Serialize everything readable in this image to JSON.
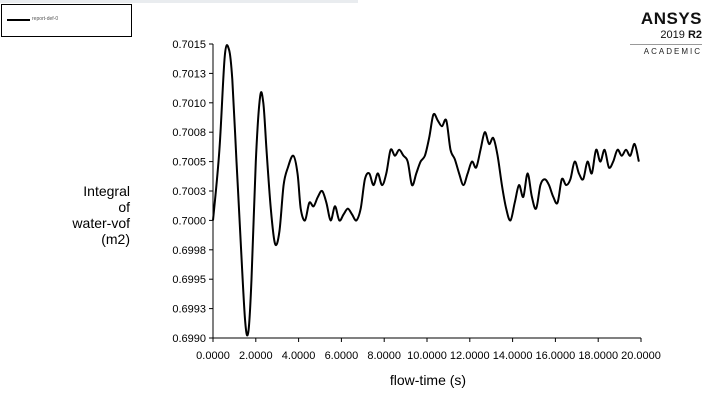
{
  "legend": {
    "entry": "report-def-0"
  },
  "brand": {
    "name": "ANSYS",
    "version": "2019",
    "release": "R2",
    "tier": "ACADEMIC"
  },
  "chart_data": {
    "type": "line",
    "ylabel": [
      "Integral",
      "of",
      "water-vof",
      "(m2)"
    ],
    "xlabel": "flow-time (s)",
    "xlim": [
      0,
      20
    ],
    "ylim": [
      0.699,
      0.7015
    ],
    "x_ticks": [
      0,
      2,
      4,
      6,
      8,
      10,
      12,
      14,
      16,
      18,
      20
    ],
    "x_tick_labels": [
      "0.0000",
      "2.0000",
      "4.0000",
      "6.0000",
      "8.0000",
      "10.0000",
      "12.0000",
      "14.0000",
      "16.0000",
      "18.0000",
      "20.0000"
    ],
    "y_ticks": [
      0.699,
      0.69925,
      0.6995,
      0.69975,
      0.7,
      0.70025,
      0.7005,
      0.70075,
      0.701,
      0.70125,
      0.7015
    ],
    "y_tick_labels": [
      "0.6990",
      "0.6993",
      "0.6995",
      "0.6998",
      "0.7000",
      "0.7003",
      "0.7005",
      "0.7008",
      "0.7010",
      "0.7013",
      "0.7015"
    ],
    "grid": false,
    "series": [
      {
        "name": "report-def-0",
        "color": "#000000",
        "x": [
          0.0,
          0.3,
          0.55,
          0.75,
          0.9,
          1.1,
          1.3,
          1.5,
          1.65,
          1.8,
          2.0,
          2.2,
          2.35,
          2.5,
          2.7,
          2.9,
          3.1,
          3.3,
          3.5,
          3.75,
          3.95,
          4.1,
          4.3,
          4.5,
          4.7,
          4.9,
          5.1,
          5.3,
          5.5,
          5.7,
          5.9,
          6.1,
          6.3,
          6.5,
          6.7,
          6.9,
          7.1,
          7.3,
          7.5,
          7.7,
          7.9,
          8.1,
          8.3,
          8.5,
          8.7,
          8.9,
          9.1,
          9.3,
          9.5,
          9.7,
          9.9,
          10.1,
          10.3,
          10.5,
          10.7,
          10.9,
          11.1,
          11.3,
          11.5,
          11.7,
          11.9,
          12.1,
          12.3,
          12.5,
          12.7,
          12.9,
          13.1,
          13.3,
          13.5,
          13.7,
          13.9,
          14.1,
          14.3,
          14.5,
          14.7,
          14.9,
          15.1,
          15.3,
          15.5,
          15.7,
          15.9,
          16.1,
          16.3,
          16.5,
          16.7,
          16.9,
          17.1,
          17.3,
          17.5,
          17.7,
          17.9,
          18.1,
          18.3,
          18.5,
          18.7,
          18.9,
          19.1,
          19.3,
          19.5,
          19.7,
          19.9
        ],
        "y": [
          0.7,
          0.7006,
          0.7014,
          0.70145,
          0.7012,
          0.7005,
          0.6998,
          0.69915,
          0.69905,
          0.6995,
          0.7005,
          0.70105,
          0.701,
          0.7006,
          0.7001,
          0.6998,
          0.6999,
          0.7003,
          0.70045,
          0.70055,
          0.7004,
          0.7001,
          0.7,
          0.70015,
          0.70012,
          0.7002,
          0.70025,
          0.70015,
          0.7,
          0.70012,
          0.7,
          0.70005,
          0.7001,
          0.70005,
          0.7,
          0.7001,
          0.70035,
          0.7004,
          0.7003,
          0.7004,
          0.7003,
          0.7004,
          0.7006,
          0.70055,
          0.7006,
          0.70055,
          0.7005,
          0.7003,
          0.7004,
          0.7005,
          0.70055,
          0.7007,
          0.7009,
          0.70085,
          0.7008,
          0.70085,
          0.7006,
          0.70052,
          0.7004,
          0.7003,
          0.7004,
          0.7005,
          0.70045,
          0.7006,
          0.70075,
          0.70065,
          0.7007,
          0.70055,
          0.7003,
          0.7001,
          0.7,
          0.70015,
          0.7003,
          0.7002,
          0.7004,
          0.7002,
          0.7001,
          0.7003,
          0.70035,
          0.7003,
          0.7002,
          0.70015,
          0.70035,
          0.7003,
          0.70035,
          0.7005,
          0.7004,
          0.70035,
          0.7005,
          0.7004,
          0.7006,
          0.7005,
          0.7006,
          0.70045,
          0.7005,
          0.7006,
          0.70055,
          0.7006,
          0.70055,
          0.70065,
          0.7005
        ]
      }
    ]
  }
}
